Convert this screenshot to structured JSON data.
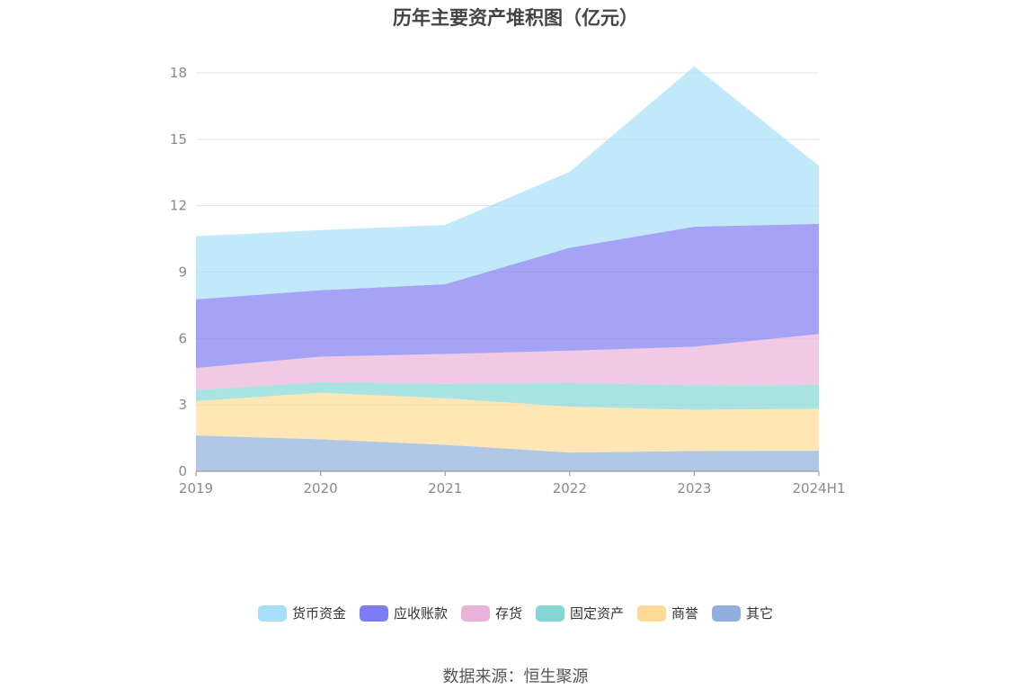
{
  "chart_data": {
    "type": "area",
    "stacked": true,
    "title": "历年主要资产堆积图（亿元）",
    "categories": [
      "2019",
      "2020",
      "2021",
      "2022",
      "2023",
      "2024H1"
    ],
    "ylim": [
      0,
      18
    ],
    "yticks": [
      0,
      3,
      6,
      9,
      12,
      15,
      18
    ],
    "grid": true,
    "legend_position": "bottom",
    "series": [
      {
        "name": "其它",
        "color": "#8fb0dc",
        "values": [
          1.62,
          1.45,
          1.2,
          0.85,
          0.92,
          0.93
        ]
      },
      {
        "name": "商誉",
        "color": "#fddb96",
        "values": [
          1.55,
          2.1,
          2.1,
          2.07,
          1.86,
          1.9
        ]
      },
      {
        "name": "固定资产",
        "color": "#85d7d6",
        "values": [
          0.5,
          0.48,
          0.65,
          1.08,
          1.1,
          1.07
        ]
      },
      {
        "name": "存货",
        "color": "#e9b3d9",
        "values": [
          1.0,
          1.15,
          1.35,
          1.45,
          1.75,
          2.3
        ]
      },
      {
        "name": "应收账款",
        "color": "#7d7cf2",
        "values": [
          3.1,
          3.0,
          3.15,
          4.65,
          5.42,
          4.98
        ]
      },
      {
        "name": "货币资金",
        "color": "#a8dff8",
        "values": [
          2.85,
          2.72,
          2.68,
          3.43,
          7.25,
          2.62
        ]
      }
    ]
  },
  "legend_order": [
    "货币资金",
    "应收账款",
    "存货",
    "固定资产",
    "商誉",
    "其它"
  ],
  "source": "数据来源：恒生聚源"
}
